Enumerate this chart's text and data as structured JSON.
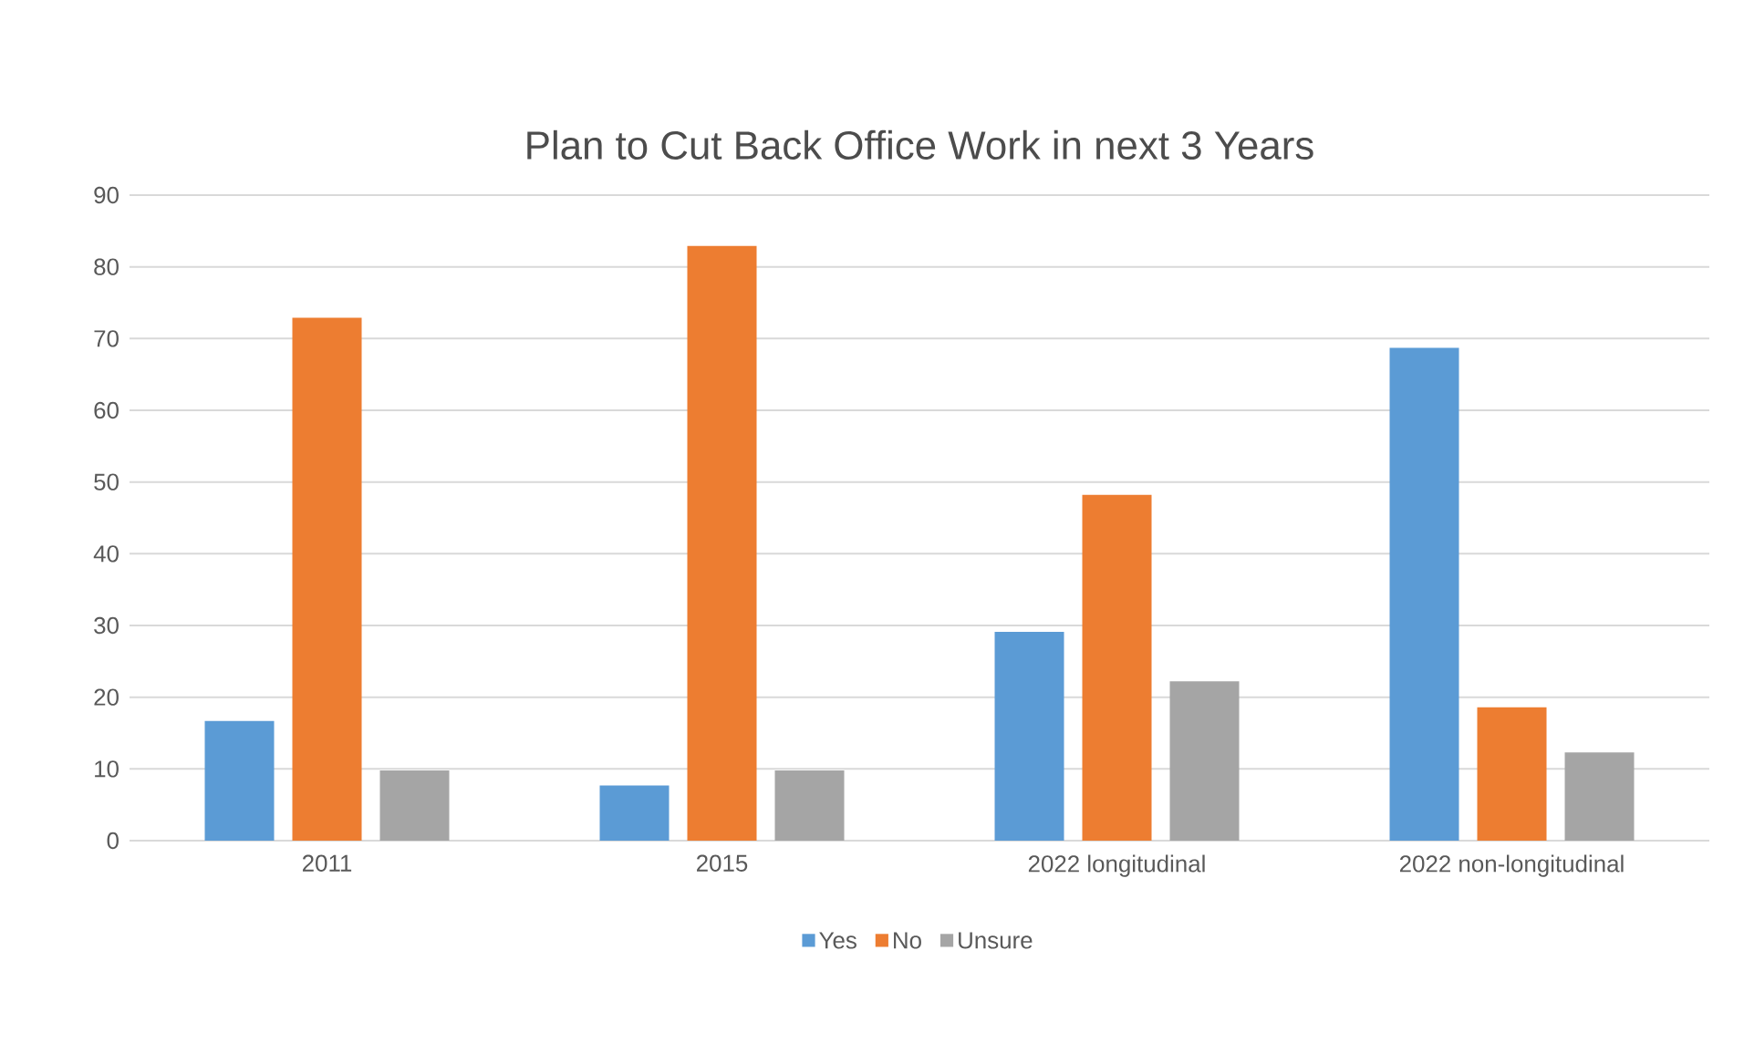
{
  "chart_data": {
    "type": "bar",
    "title": "Plan to Cut Back Office Work in next 3 Years",
    "categories": [
      "2011",
      "2015",
      "2022 longitudinal",
      "2022 non-longitudinal"
    ],
    "series": [
      {
        "name": "Yes",
        "color": "#5b9bd5",
        "values": [
          16.7,
          7.7,
          29.1,
          68.7
        ]
      },
      {
        "name": "No",
        "color": "#ed7d31",
        "values": [
          72.9,
          82.9,
          48.2,
          18.6
        ]
      },
      {
        "name": "Unsure",
        "color": "#a5a5a5",
        "values": [
          9.8,
          9.8,
          22.2,
          12.3
        ]
      }
    ],
    "ylim": [
      0,
      90
    ],
    "yticks": [
      0,
      10,
      20,
      30,
      40,
      50,
      60,
      70,
      80,
      90
    ],
    "grid": "y",
    "legend": "bottom"
  }
}
